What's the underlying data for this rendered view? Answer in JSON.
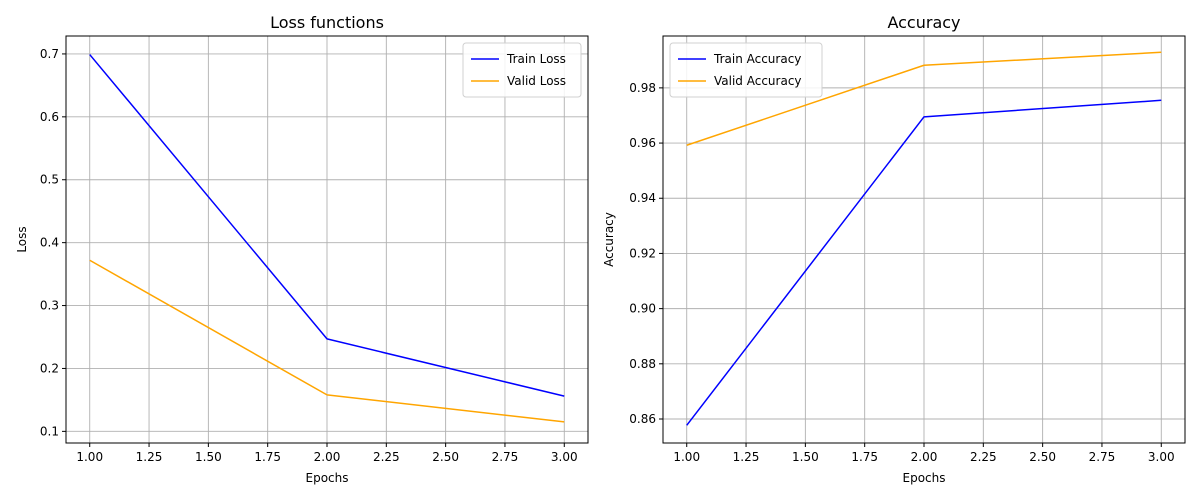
{
  "chart_data": [
    {
      "type": "line",
      "title": "Loss functions",
      "xlabel": "Epochs",
      "ylabel": "Loss",
      "x": [
        1,
        2,
        3
      ],
      "xlim": [
        0.9,
        3.1
      ],
      "ylim": [
        0.0815,
        0.7285
      ],
      "xticks": [
        1.0,
        1.25,
        1.5,
        1.75,
        2.0,
        2.25,
        2.5,
        2.75,
        3.0
      ],
      "xtick_labels": [
        "1.00",
        "1.25",
        "1.50",
        "1.75",
        "2.00",
        "2.25",
        "2.50",
        "2.75",
        "3.00"
      ],
      "yticks": [
        0.1,
        0.2,
        0.3,
        0.4,
        0.5,
        0.6,
        0.7
      ],
      "ytick_labels": [
        "0.1",
        "0.2",
        "0.3",
        "0.4",
        "0.5",
        "0.6",
        "0.7"
      ],
      "grid": true,
      "legend_position": "top-right",
      "series": [
        {
          "name": "Train Loss",
          "color": "#0000ff",
          "values": [
            0.699,
            0.247,
            0.156
          ]
        },
        {
          "name": "Valid Loss",
          "color": "#ffa500",
          "values": [
            0.372,
            0.158,
            0.115
          ]
        }
      ]
    },
    {
      "type": "line",
      "title": "Accuracy",
      "xlabel": "Epochs",
      "ylabel": "Accuracy",
      "x": [
        1,
        2,
        3
      ],
      "xlim": [
        0.9,
        3.1
      ],
      "ylim": [
        0.8513,
        0.9988
      ],
      "xticks": [
        1.0,
        1.25,
        1.5,
        1.75,
        2.0,
        2.25,
        2.5,
        2.75,
        3.0
      ],
      "xtick_labels": [
        "1.00",
        "1.25",
        "1.50",
        "1.75",
        "2.00",
        "2.25",
        "2.50",
        "2.75",
        "3.00"
      ],
      "yticks": [
        0.86,
        0.88,
        0.9,
        0.92,
        0.94,
        0.96,
        0.98
      ],
      "ytick_labels": [
        "0.86",
        "0.88",
        "0.90",
        "0.92",
        "0.94",
        "0.96",
        "0.98"
      ],
      "grid": true,
      "legend_position": "top-left",
      "series": [
        {
          "name": "Train Accuracy",
          "color": "#0000ff",
          "values": [
            0.8577,
            0.9695,
            0.9755
          ]
        },
        {
          "name": "Valid Accuracy",
          "color": "#ffa500",
          "values": [
            0.9592,
            0.9882,
            0.9929
          ]
        }
      ]
    }
  ]
}
